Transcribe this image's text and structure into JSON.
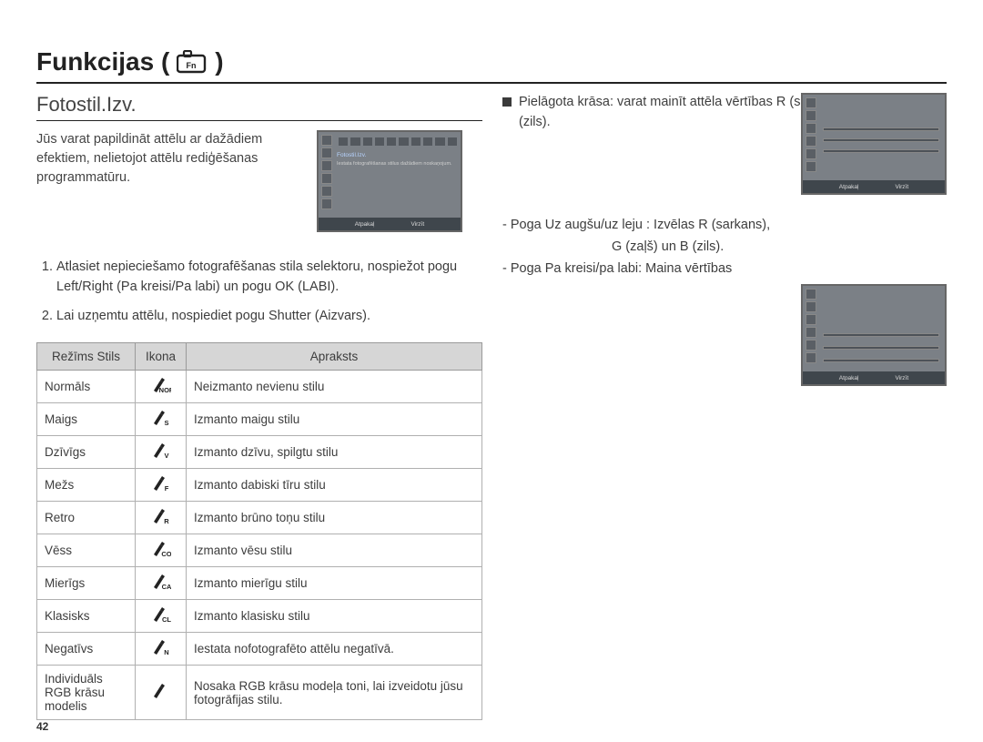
{
  "title": "Funkcijas (",
  "title_close": ")",
  "subhead": "Fotostil.Izv.",
  "intro": "Jūs varat papildināt attēlu ar dažādiem efektiem, nelietojot attēlu rediģēšanas programmatūru.",
  "shot1": {
    "label": "Fotostil.Izv.",
    "desc": "Iestata fotografēšanas stilus dažādiem noskaņojum.",
    "footer_left": "Atpakaļ",
    "footer_right": "Virzīt"
  },
  "steps": [
    "Atlasiet nepieciešamo fotografēšanas stila selektoru, nospiežot pogu Left/Right (Pa kreisi/Pa labi) un pogu OK (LABI).",
    "Lai uzņemtu attēlu, nospiediet pogu Shutter (Aizvars)."
  ],
  "table_headers": {
    "mode": "Režīms Stils",
    "icon": "Ikona",
    "desc": "Apraksts"
  },
  "styles": [
    {
      "mode": "Normāls",
      "icon_sub": "NOR",
      "desc": "Neizmanto nevienu stilu"
    },
    {
      "mode": "Maigs",
      "icon_sub": "S",
      "desc": "Izmanto maigu stilu"
    },
    {
      "mode": "Dzīvīgs",
      "icon_sub": "V",
      "desc": "Izmanto dzīvu, spilgtu stilu"
    },
    {
      "mode": "Mežs",
      "icon_sub": "F",
      "desc": "Izmanto dabiski tīru stilu"
    },
    {
      "mode": "Retro",
      "icon_sub": "R",
      "desc": "Izmanto brūno toņu stilu"
    },
    {
      "mode": "Vēss",
      "icon_sub": "CO",
      "desc": "Izmanto vēsu stilu"
    },
    {
      "mode": "Mierīgs",
      "icon_sub": "CA",
      "desc": "Izmanto mierīgu stilu"
    },
    {
      "mode": "Klasisks",
      "icon_sub": "CL",
      "desc": "Izmanto klasisku stilu"
    },
    {
      "mode": "Negatīvs",
      "icon_sub": "N",
      "desc": "Iestata nofotografēto attēlu negatīvā."
    },
    {
      "mode": "Individuāls RGB krāsu modelis",
      "icon_sub": "",
      "desc": "Nosaka RGB krāsu modeļa toni, lai izveidotu jūsu fotogrāfijas stilu."
    }
  ],
  "right_bullet": "Pielāgota krāsa: varat mainīt attēla vērtības R (sarkans), G (zaļš) un B (zils).",
  "right_lines": {
    "l1": "- Poga Uz augšu/uz leju : Izvēlas R (sarkans),",
    "l1b": "G (zaļš) un B (zils).",
    "l2": "- Poga Pa kreisi/pa labi: Maina vērtības"
  },
  "mini_footer": {
    "left": "Atpakaļ",
    "right": "Virzīt"
  },
  "pagenum": "42",
  "colors": {
    "text": "#3b3b3b",
    "border_dark": "#222222",
    "table_header_bg": "#d6d6d6",
    "table_border": "#9a9a9a",
    "shot_bg": "#7b8086",
    "shot_footer": "#3f464c"
  }
}
